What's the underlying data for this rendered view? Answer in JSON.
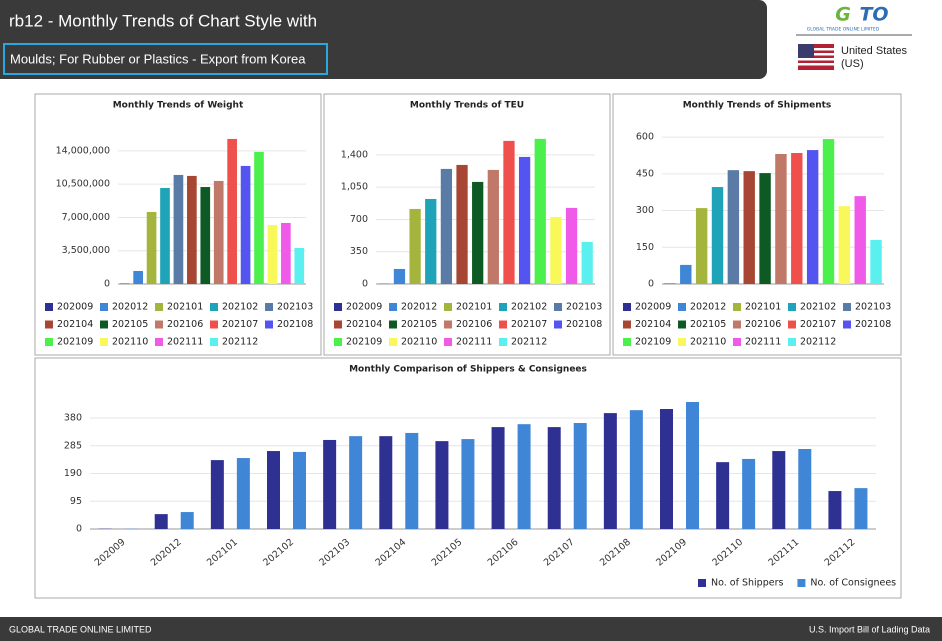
{
  "header": {
    "title": "rb12 - Monthly Trends of Chart Style with",
    "subtitle": "Moulds; For Rubber or Plastics - Export from Korea",
    "logo_text": "GLOBAL TRADE ONLINE LIMITED",
    "country_name": "United States",
    "country_code": "(US)"
  },
  "footer": {
    "left": "GLOBAL TRADE ONLINE LIMITED",
    "right": "U.S. Import Bill of Lading Data"
  },
  "chart_data": [
    {
      "type": "month-bar",
      "title": "Monthly Trends of Weight",
      "categories": [
        "202009",
        "202012",
        "202101",
        "202102",
        "202103",
        "202104",
        "202105",
        "202106",
        "202107",
        "202108",
        "202109",
        "202110",
        "202111",
        "202112"
      ],
      "values": [
        50000,
        1370000,
        7580000,
        10100000,
        11470000,
        11370000,
        10200000,
        10840000,
        15260000,
        12420000,
        13900000,
        6200000,
        6420000,
        3790000
      ],
      "colors": [
        "#2e3192",
        "#3f86d6",
        "#a4b43c",
        "#1ea3b8",
        "#5a7ba6",
        "#a84634",
        "#0d5a24",
        "#c07868",
        "#f0504c",
        "#5454f0",
        "#4cf04c",
        "#f8f85a",
        "#f05ae8",
        "#5af0f0"
      ],
      "ylim": [
        0,
        16200000
      ],
      "yticks": [
        0,
        {
          "value": 3500000,
          "label": "3,500,000"
        },
        {
          "value": 7000000,
          "label": "7,000,000"
        },
        {
          "value": 10500000,
          "label": "10,500,000"
        },
        {
          "value": 14000000,
          "label": "14,000,000"
        }
      ],
      "grid": true
    },
    {
      "type": "month-bar",
      "title": "Monthly Trends of TEU",
      "categories": [
        "202009",
        "202012",
        "202101",
        "202102",
        "202103",
        "202104",
        "202105",
        "202106",
        "202107",
        "202108",
        "202109",
        "202110",
        "202111",
        "202112"
      ],
      "values": [
        2,
        163,
        814,
        922,
        1248,
        1291,
        1107,
        1237,
        1552,
        1378,
        1574,
        727,
        825,
        456
      ],
      "colors": [
        "#2e3192",
        "#3f86d6",
        "#a4b43c",
        "#1ea3b8",
        "#5a7ba6",
        "#a84634",
        "#0d5a24",
        "#c07868",
        "#f0504c",
        "#5454f0",
        "#4cf04c",
        "#f8f85a",
        "#f05ae8",
        "#5af0f0"
      ],
      "ylim": [
        0,
        1670
      ],
      "yticks": [
        0,
        350,
        700,
        {
          "value": 1050,
          "label": "1,050"
        },
        {
          "value": 1400,
          "label": "1,400"
        }
      ],
      "grid": true
    },
    {
      "type": "month-bar",
      "title": "Monthly Trends of Shipments",
      "categories": [
        "202009",
        "202012",
        "202101",
        "202102",
        "202103",
        "202104",
        "202105",
        "202106",
        "202107",
        "202108",
        "202109",
        "202110",
        "202111",
        "202112"
      ],
      "values": [
        2,
        78,
        310,
        396,
        465,
        461,
        453,
        531,
        535,
        547,
        592,
        318,
        359,
        180
      ],
      "colors": [
        "#2e3192",
        "#3f86d6",
        "#a4b43c",
        "#1ea3b8",
        "#5a7ba6",
        "#a84634",
        "#0d5a24",
        "#c07868",
        "#f0504c",
        "#5454f0",
        "#4cf04c",
        "#f8f85a",
        "#f05ae8",
        "#5af0f0"
      ],
      "ylim": [
        0,
        629
      ],
      "yticks": [
        0,
        150,
        300,
        450,
        600
      ],
      "grid": true
    },
    {
      "type": "grouped-bar",
      "title": "Monthly Comparison of Shippers & Consignees",
      "categories": [
        "202009",
        "202012",
        "202101",
        "202102",
        "202103",
        "202104",
        "202105",
        "202106",
        "202107",
        "202108",
        "202109",
        "202110",
        "202111",
        "202112"
      ],
      "series": [
        {
          "name": "No. of Shippers",
          "color": "#2e3192",
          "values": [
            1,
            51,
            236,
            267,
            305,
            318,
            301,
            349,
            349,
            397,
            411,
            229,
            267,
            130
          ]
        },
        {
          "name": "No. of Consignees",
          "color": "#3f86d6",
          "values": [
            1,
            58,
            243,
            264,
            318,
            329,
            308,
            359,
            363,
            407,
            435,
            240,
            274,
            140
          ]
        }
      ],
      "ylim": [
        0,
        435
      ],
      "yticks": [
        0,
        95,
        190,
        285,
        380
      ],
      "grid": true
    }
  ]
}
